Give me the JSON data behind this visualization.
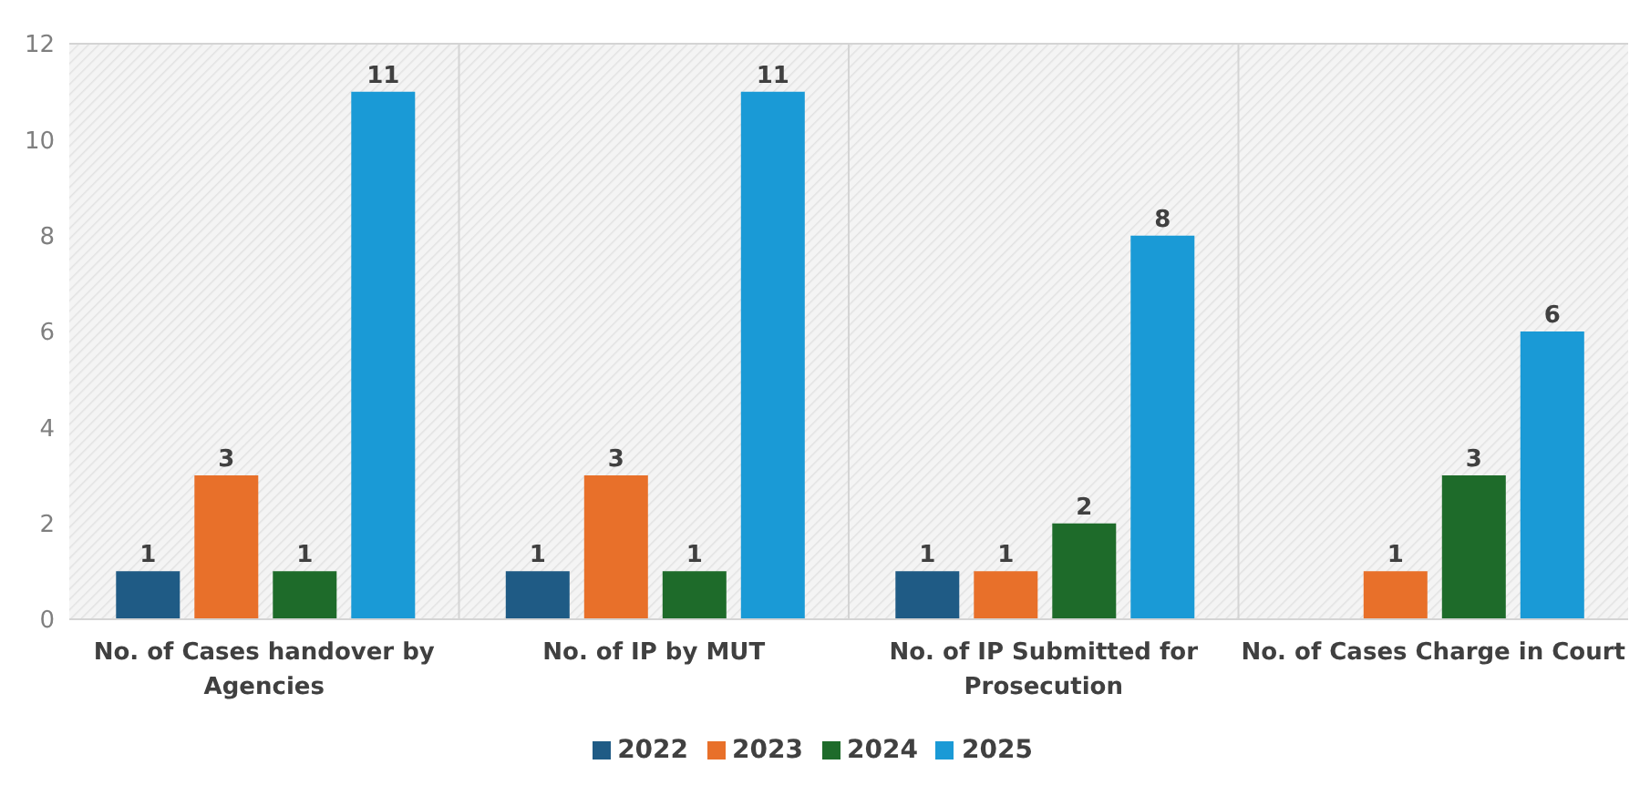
{
  "chart_data": {
    "type": "bar",
    "categories": [
      "No. of Cases handover by Agencies",
      "No. of IP by MUT",
      "No. of IP Submitted for Prosecution",
      "No. of Cases Charge in Court"
    ],
    "series": [
      {
        "name": "2022",
        "color": "#1f5b85",
        "values": [
          1,
          1,
          1,
          null
        ]
      },
      {
        "name": "2023",
        "color": "#e8702a",
        "values": [
          3,
          3,
          1,
          1
        ]
      },
      {
        "name": "2024",
        "color": "#1e6b2a",
        "values": [
          1,
          1,
          2,
          3
        ]
      },
      {
        "name": "2025",
        "color": "#1a9ad6",
        "values": [
          11,
          11,
          8,
          6
        ]
      }
    ],
    "ylim": [
      0,
      12
    ],
    "yticks": [
      0,
      2,
      4,
      6,
      8,
      10,
      12
    ],
    "grid": true,
    "legend": "bottom",
    "data_labels": true
  }
}
